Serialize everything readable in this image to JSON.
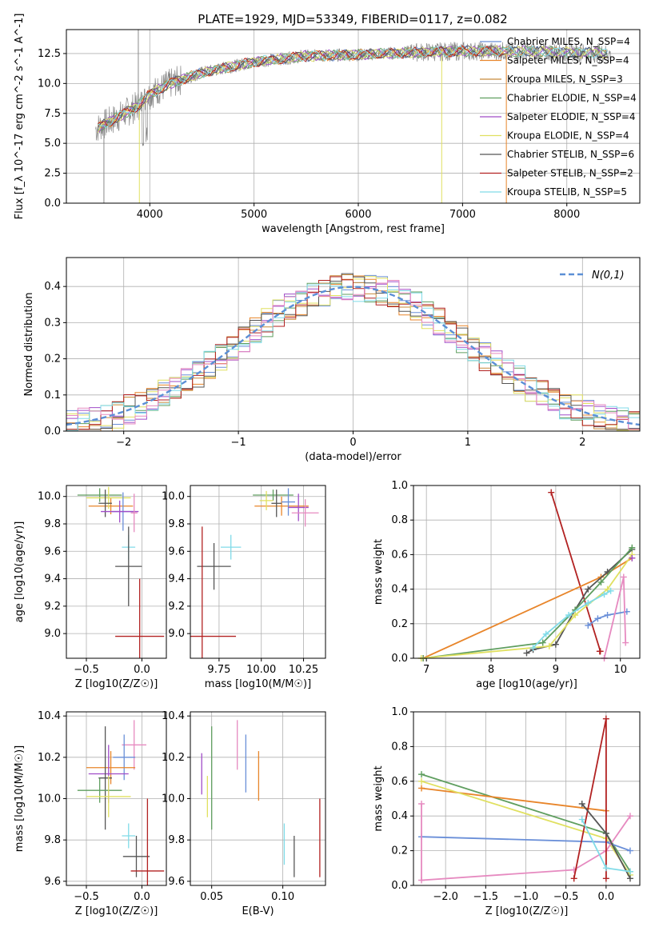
{
  "title": "PLATE=1929, MJD=53349, FIBERID=0117, z=0.082",
  "colors": {
    "chabrier_miles": "#6a8fd8",
    "salpeter_miles": "#e8852a",
    "kroupa_miles": "#c88a3a",
    "chabrier_elodie": "#5f9e5f",
    "salpeter_elodie": "#a04cc8",
    "kroupa_elodie": "#e0e060",
    "chabrier_stelib": "#555555",
    "salpeter_stelib": "#b22222",
    "kroupa_stelib": "#80dbe8",
    "pink": "#e68ac0",
    "data": "#888888",
    "normal": "#5b8fd6"
  },
  "chart_data": [
    {
      "type": "line",
      "title": "PLATE=1929, MJD=53349, FIBERID=0117, z=0.082",
      "xlabel": "wavelength [Angstrom, rest frame]",
      "ylabel": "Flux [f_λ 10^-17 erg cm^-2 s^-1 A^-1]",
      "xlim": [
        3200,
        8700
      ],
      "ylim": [
        0,
        14.5
      ],
      "xticks": [
        "4000",
        "5000",
        "6000",
        "7000",
        "8000"
      ],
      "yticks": [
        "0.0",
        "2.5",
        "5.0",
        "7.5",
        "10.0",
        "12.5"
      ],
      "legend_position": "right",
      "continuum": {
        "x": [
          3500,
          3700,
          3900,
          4000,
          4200,
          4500,
          5000,
          5500,
          6000,
          6500,
          7000,
          7500,
          8000,
          8400
        ],
        "y": [
          6.3,
          7.2,
          8.2,
          9.1,
          10.0,
          10.9,
          11.8,
          12.3,
          12.4,
          12.6,
          12.7,
          12.7,
          12.6,
          12.5
        ]
      },
      "series": [
        {
          "name": "Chabrier MILES, N_SSP=4"
        },
        {
          "name": "Salpeter MILES, N_SSP=4"
        },
        {
          "name": "Kroupa MILES, N_SSP=3"
        },
        {
          "name": "Chabrier ELODIE, N_SSP=4"
        },
        {
          "name": "Salpeter ELODIE, N_SSP=4"
        },
        {
          "name": "Kroupa ELODIE, N_SSP=4"
        },
        {
          "name": "Chabrier STELIB, N_SSP=6"
        },
        {
          "name": "Salpeter STELIB, N_SSP=2"
        },
        {
          "name": "Kroupa STELIB, N_SSP=5"
        }
      ]
    },
    {
      "type": "line",
      "xlabel": "(data-model)/error",
      "ylabel": "Normed distribution",
      "xlim": [
        -2.5,
        2.5
      ],
      "ylim": [
        0,
        0.48
      ],
      "xticks": [
        "−2",
        "−1",
        "0",
        "1",
        "2"
      ],
      "yticks": [
        "0.0",
        "0.1",
        "0.2",
        "0.3",
        "0.4"
      ],
      "legend": "N(0,1)",
      "legend_position": "top-right"
    },
    {
      "type": "scatter",
      "xlabel": "Z [log10(Z/Z☉)]",
      "ylabel": "age [log10(age/yr)]",
      "xlim": [
        -0.68,
        0.22
      ],
      "ylim": [
        8.82,
        10.08
      ],
      "xticks": [
        "−0.5",
        "0.0"
      ],
      "yticks": [
        "9.0",
        "9.2",
        "9.4",
        "9.6",
        "9.8",
        "10.0"
      ],
      "points": [
        {
          "x": -0.38,
          "xerr": 0.2,
          "y": 10.01,
          "yerr": 0.05,
          "c": "chabrier_elodie"
        },
        {
          "x": -0.28,
          "xerr": 0.2,
          "y": 9.93,
          "yerr": 0.06,
          "c": "salpeter_miles"
        },
        {
          "x": -0.3,
          "xerr": 0.2,
          "y": 9.99,
          "yerr": 0.08,
          "c": "kroupa_elodie"
        },
        {
          "x": -0.33,
          "xerr": 0.06,
          "y": 9.95,
          "yerr": 0.1,
          "c": "chabrier_stelib"
        },
        {
          "x": -0.17,
          "xerr": 0.1,
          "y": 9.89,
          "yerr": 0.14,
          "c": "chabrier_miles"
        },
        {
          "x": -0.2,
          "xerr": 0.17,
          "y": 9.89,
          "yerr": 0.08,
          "c": "salpeter_elodie"
        },
        {
          "x": -0.07,
          "xerr": 0.03,
          "y": 9.88,
          "yerr": 0.14,
          "c": "pink"
        },
        {
          "x": -0.12,
          "xerr": 0.06,
          "y": 9.63,
          "yerr": 0.09,
          "c": "kroupa_stelib"
        },
        {
          "x": -0.12,
          "xerr": 0.12,
          "y": 9.49,
          "yerr": 0.29,
          "c": "chabrier_stelib"
        },
        {
          "x": -0.02,
          "xerr": 0.22,
          "y": 8.98,
          "yerr": 0.42,
          "c": "salpeter_stelib"
        }
      ]
    },
    {
      "type": "scatter",
      "xlabel": "mass [log10(M/M☉)]",
      "ylabel": "",
      "xlim": [
        9.58,
        10.38
      ],
      "ylim": [
        8.82,
        10.08
      ],
      "xticks": [
        "9.75",
        "10.00",
        "10.25"
      ],
      "yticks": [
        "9.0",
        "9.2",
        "9.4",
        "9.6",
        "9.8",
        "10.0"
      ],
      "points": [
        {
          "x": 10.07,
          "xerr": 0.12,
          "y": 10.01,
          "yerr": 0.04,
          "c": "chabrier_elodie"
        },
        {
          "x": 10.12,
          "xerr": 0.16,
          "y": 9.93,
          "yerr": 0.07,
          "c": "salpeter_miles"
        },
        {
          "x": 10.03,
          "xerr": 0.04,
          "y": 9.97,
          "yerr": 0.07,
          "c": "kroupa_elodie"
        },
        {
          "x": 10.09,
          "xerr": 0.03,
          "y": 9.95,
          "yerr": 0.1,
          "c": "chabrier_stelib"
        },
        {
          "x": 10.16,
          "xerr": 0.04,
          "y": 9.96,
          "yerr": 0.1,
          "c": "chabrier_miles"
        },
        {
          "x": 10.22,
          "xerr": 0.06,
          "y": 9.92,
          "yerr": 0.1,
          "c": "salpeter_elodie"
        },
        {
          "x": 10.26,
          "xerr": 0.08,
          "y": 9.88,
          "yerr": 0.1,
          "c": "pink"
        },
        {
          "x": 9.82,
          "xerr": 0.06,
          "y": 9.63,
          "yerr": 0.09,
          "c": "kroupa_stelib"
        },
        {
          "x": 9.72,
          "xerr": 0.1,
          "y": 9.49,
          "yerr": 0.17,
          "c": "chabrier_stelib"
        },
        {
          "x": 9.65,
          "xerr": 0.2,
          "y": 8.98,
          "yerr": 0.8,
          "c": "salpeter_stelib"
        }
      ]
    },
    {
      "type": "line",
      "xlabel": "age [log10(age/yr)]",
      "ylabel": "mass weight",
      "xlim": [
        6.8,
        10.3
      ],
      "ylim": [
        0,
        1
      ],
      "xticks": [
        "7",
        "8",
        "9",
        "10"
      ],
      "yticks": [
        "0.0",
        "0.2",
        "0.4",
        "0.6",
        "0.8",
        "1.0"
      ],
      "series": [
        {
          "c": "salpeter_stelib",
          "x": [
            8.93,
            9.69,
            9.68
          ],
          "y": [
            0.96,
            0.04,
            0.04
          ]
        },
        {
          "c": "salpeter_miles",
          "x": [
            6.95,
            9.7,
            10.18
          ],
          "y": [
            0.0,
            0.47,
            0.58
          ]
        },
        {
          "c": "chabrier_stelib",
          "x": [
            8.55,
            8.65,
            9.0,
            9.3,
            9.5,
            9.8,
            10.18
          ],
          "y": [
            0.03,
            0.05,
            0.08,
            0.28,
            0.4,
            0.5,
            0.63
          ]
        },
        {
          "c": "chabrier_elodie",
          "x": [
            6.95,
            8.8,
            9.3,
            9.7,
            10.18
          ],
          "y": [
            0.0,
            0.09,
            0.28,
            0.44,
            0.64
          ]
        },
        {
          "c": "kroupa_elodie",
          "x": [
            6.92,
            8.9,
            9.3,
            9.8,
            10.18
          ],
          "y": [
            0.0,
            0.07,
            0.25,
            0.4,
            0.6
          ]
        },
        {
          "c": "kroupa_stelib",
          "x": [
            8.65,
            8.85,
            9.2,
            9.5,
            9.75,
            9.85
          ],
          "y": [
            0.06,
            0.14,
            0.25,
            0.32,
            0.37,
            0.39
          ]
        },
        {
          "c": "chabrier_miles",
          "x": [
            9.5,
            9.65,
            9.8,
            10.1
          ],
          "y": [
            0.19,
            0.23,
            0.25,
            0.27
          ]
        },
        {
          "c": "salpeter_elodie",
          "x": [
            10.18
          ],
          "y": [
            0.58
          ]
        },
        {
          "c": "pink",
          "x": [
            9.75,
            10.05,
            10.08
          ],
          "y": [
            0.0,
            0.47,
            0.09
          ]
        }
      ]
    },
    {
      "type": "scatter",
      "xlabel": "Z [log10(Z/Z☉)]",
      "ylabel": "mass [log10(M/M☉)]",
      "xlim": [
        -0.68,
        0.22
      ],
      "ylim": [
        9.58,
        10.42
      ],
      "xticks": [
        "−0.5",
        "0.0"
      ],
      "yticks": [
        "9.6",
        "9.8",
        "10.0",
        "10.2",
        "10.4"
      ],
      "points": [
        {
          "x": -0.07,
          "xerr": 0.11,
          "y": 10.26,
          "yerr": 0.12,
          "c": "pink"
        },
        {
          "x": -0.16,
          "xerr": 0.1,
          "y": 10.2,
          "yerr": 0.11,
          "c": "chabrier_miles"
        },
        {
          "x": -0.28,
          "xerr": 0.22,
          "y": 10.15,
          "yerr": 0.08,
          "c": "salpeter_miles"
        },
        {
          "x": -0.3,
          "xerr": 0.18,
          "y": 10.12,
          "yerr": 0.14,
          "c": "salpeter_elodie"
        },
        {
          "x": -0.33,
          "xerr": 0.06,
          "y": 10.1,
          "yerr": 0.25,
          "c": "chabrier_stelib"
        },
        {
          "x": -0.38,
          "xerr": 0.2,
          "y": 10.04,
          "yerr": 0.06,
          "c": "chabrier_elodie"
        },
        {
          "x": -0.3,
          "xerr": 0.2,
          "y": 10.01,
          "yerr": 0.1,
          "c": "kroupa_elodie"
        },
        {
          "x": -0.12,
          "xerr": 0.06,
          "y": 9.82,
          "yerr": 0.06,
          "c": "kroupa_stelib"
        },
        {
          "x": -0.05,
          "xerr": 0.12,
          "y": 9.72,
          "yerr": 0.1,
          "c": "chabrier_stelib"
        },
        {
          "x": 0.05,
          "xerr": 0.15,
          "y": 9.65,
          "yerr": 0.35,
          "c": "salpeter_stelib"
        }
      ]
    },
    {
      "type": "scatter",
      "xlabel": "E(B-V)",
      "ylabel": "",
      "xlim": [
        0.035,
        0.13
      ],
      "ylim": [
        9.58,
        10.42
      ],
      "xticks": [
        "0.05",
        "0.10"
      ],
      "yticks": [
        "9.6",
        "9.8",
        "10.0",
        "10.2",
        "10.4"
      ],
      "points": [
        {
          "x": 0.043,
          "y": 10.12,
          "yerr": 0.1,
          "c": "salpeter_elodie"
        },
        {
          "x": 0.047,
          "y": 10.01,
          "yerr": 0.1,
          "c": "kroupa_elodie"
        },
        {
          "x": 0.05,
          "y": 10.1,
          "yerr": 0.25,
          "c": "chabrier_elodie"
        },
        {
          "x": 0.068,
          "y": 10.26,
          "yerr": 0.12,
          "c": "pink"
        },
        {
          "x": 0.074,
          "y": 10.17,
          "yerr": 0.14,
          "c": "chabrier_miles"
        },
        {
          "x": 0.083,
          "y": 10.11,
          "yerr": 0.12,
          "c": "salpeter_miles"
        },
        {
          "x": 0.101,
          "y": 9.78,
          "yerr": 0.1,
          "c": "kroupa_stelib"
        },
        {
          "x": 0.108,
          "y": 9.72,
          "yerr": 0.1,
          "c": "chabrier_stelib"
        },
        {
          "x": 0.126,
          "y": 9.81,
          "yerr": 0.19,
          "c": "salpeter_stelib"
        }
      ]
    },
    {
      "type": "line",
      "xlabel": "Z [log10(Z/Z☉)]",
      "ylabel": "mass weight",
      "xlim": [
        -2.4,
        0.42
      ],
      "ylim": [
        0,
        1
      ],
      "xticks": [
        "−2.0",
        "−1.5",
        "−1.0",
        "−0.5",
        "0.0"
      ],
      "yticks": [
        "0.0",
        "0.2",
        "0.4",
        "0.6",
        "0.8",
        "1.0"
      ],
      "series": [
        {
          "c": "chabrier_elodie",
          "x": [
            -2.3,
            0.0,
            0.3
          ],
          "y": [
            0.64,
            0.3,
            0.08
          ]
        },
        {
          "c": "salpeter_miles",
          "x": [
            -2.3,
            0.0
          ],
          "y": [
            0.56,
            0.43
          ]
        },
        {
          "c": "kroupa_elodie",
          "x": [
            -2.3,
            0.0,
            0.3
          ],
          "y": [
            0.6,
            0.27,
            0.06
          ]
        },
        {
          "c": "chabrier_miles",
          "x": [
            -2.3,
            0.0,
            0.3
          ],
          "y": [
            0.28,
            0.25,
            0.2
          ]
        },
        {
          "c": "pink",
          "x": [
            -2.3,
            -2.3,
            -0.4,
            0.0,
            0.3
          ],
          "y": [
            0.47,
            0.03,
            0.09,
            0.2,
            0.4
          ]
        },
        {
          "c": "salpeter_stelib",
          "x": [
            -0.4,
            0.0,
            0.0
          ],
          "y": [
            0.04,
            0.96,
            0.04
          ]
        },
        {
          "c": "chabrier_stelib",
          "x": [
            -0.3,
            0.0,
            0.3
          ],
          "y": [
            0.47,
            0.3,
            0.04
          ]
        },
        {
          "c": "kroupa_stelib",
          "x": [
            -0.3,
            0.0,
            0.3
          ],
          "y": [
            0.38,
            0.1,
            0.08
          ]
        }
      ]
    }
  ]
}
